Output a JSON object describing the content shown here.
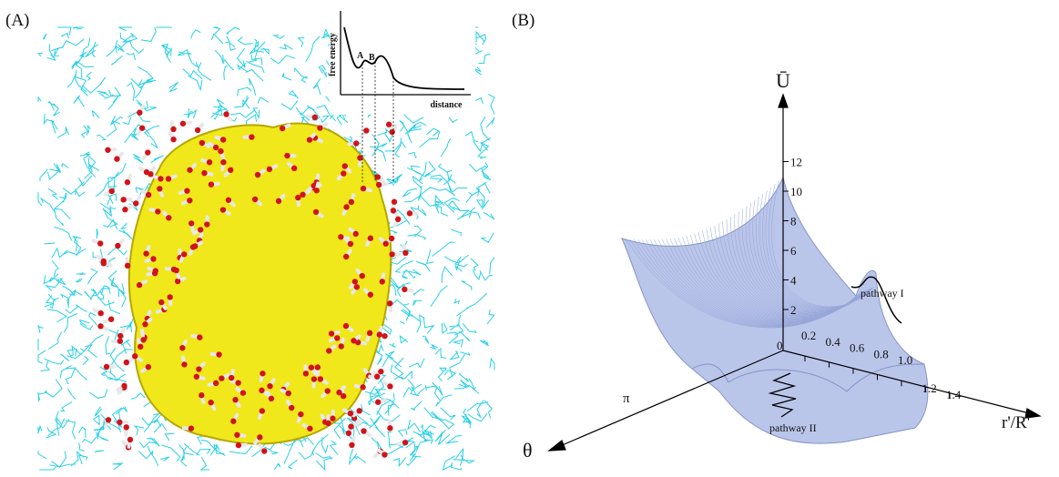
{
  "panel_a": {
    "label": "(A)",
    "inset": {
      "y_label": "free energy",
      "x_label": "distance",
      "peak_a": "A",
      "peak_b": "B"
    }
  },
  "panel_b": {
    "label": "(B)",
    "z_axis_label": "Ū",
    "r_axis_label": "r'/R'",
    "theta_axis_label": "θ",
    "origin_label": "0",
    "z_ticks": [
      "2",
      "4",
      "6",
      "8",
      "10",
      "12"
    ],
    "r_ticks": [
      "0.2",
      "0.4",
      "0.6",
      "0.8",
      "1.0",
      "1.2",
      "1.4"
    ],
    "theta_tick": "π",
    "pathway_1": "pathway I",
    "pathway_2": "pathway II"
  }
}
